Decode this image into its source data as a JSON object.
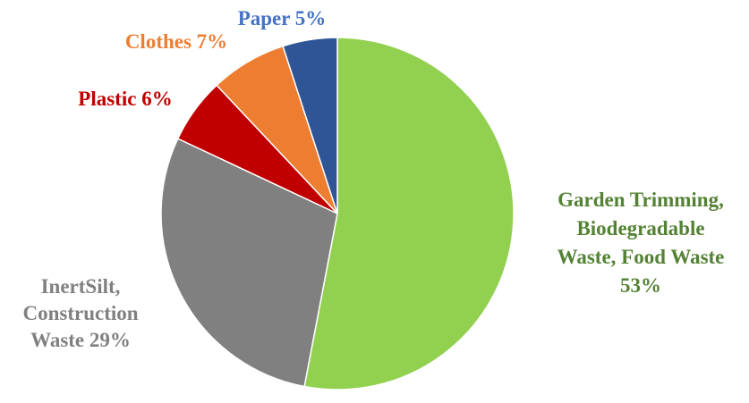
{
  "chart_data": {
    "type": "pie",
    "title": "",
    "start_angle_deg": 0,
    "direction": "clockwise",
    "slices": [
      {
        "label_lines": [
          "Garden Trimming,",
          "Biodegradable",
          "Waste, Food Waste",
          "53%"
        ],
        "value": 53,
        "color": "#92d050",
        "label_color": "#548235"
      },
      {
        "label_lines": [
          "InertSilt,",
          "Construction",
          "Waste 29%"
        ],
        "value": 29,
        "color": "#808080",
        "label_color": "#808080"
      },
      {
        "label_lines": [
          "Plastic 6%"
        ],
        "value": 6,
        "color": "#c00000",
        "label_color": "#c00000"
      },
      {
        "label_lines": [
          "Clothes 7%"
        ],
        "value": 7,
        "color": "#ed7d31",
        "label_color": "#ed7d31"
      },
      {
        "label_lines": [
          "Paper 5%"
        ],
        "value": 5,
        "color": "#2f5597",
        "label_color": "#4472c4"
      }
    ]
  }
}
